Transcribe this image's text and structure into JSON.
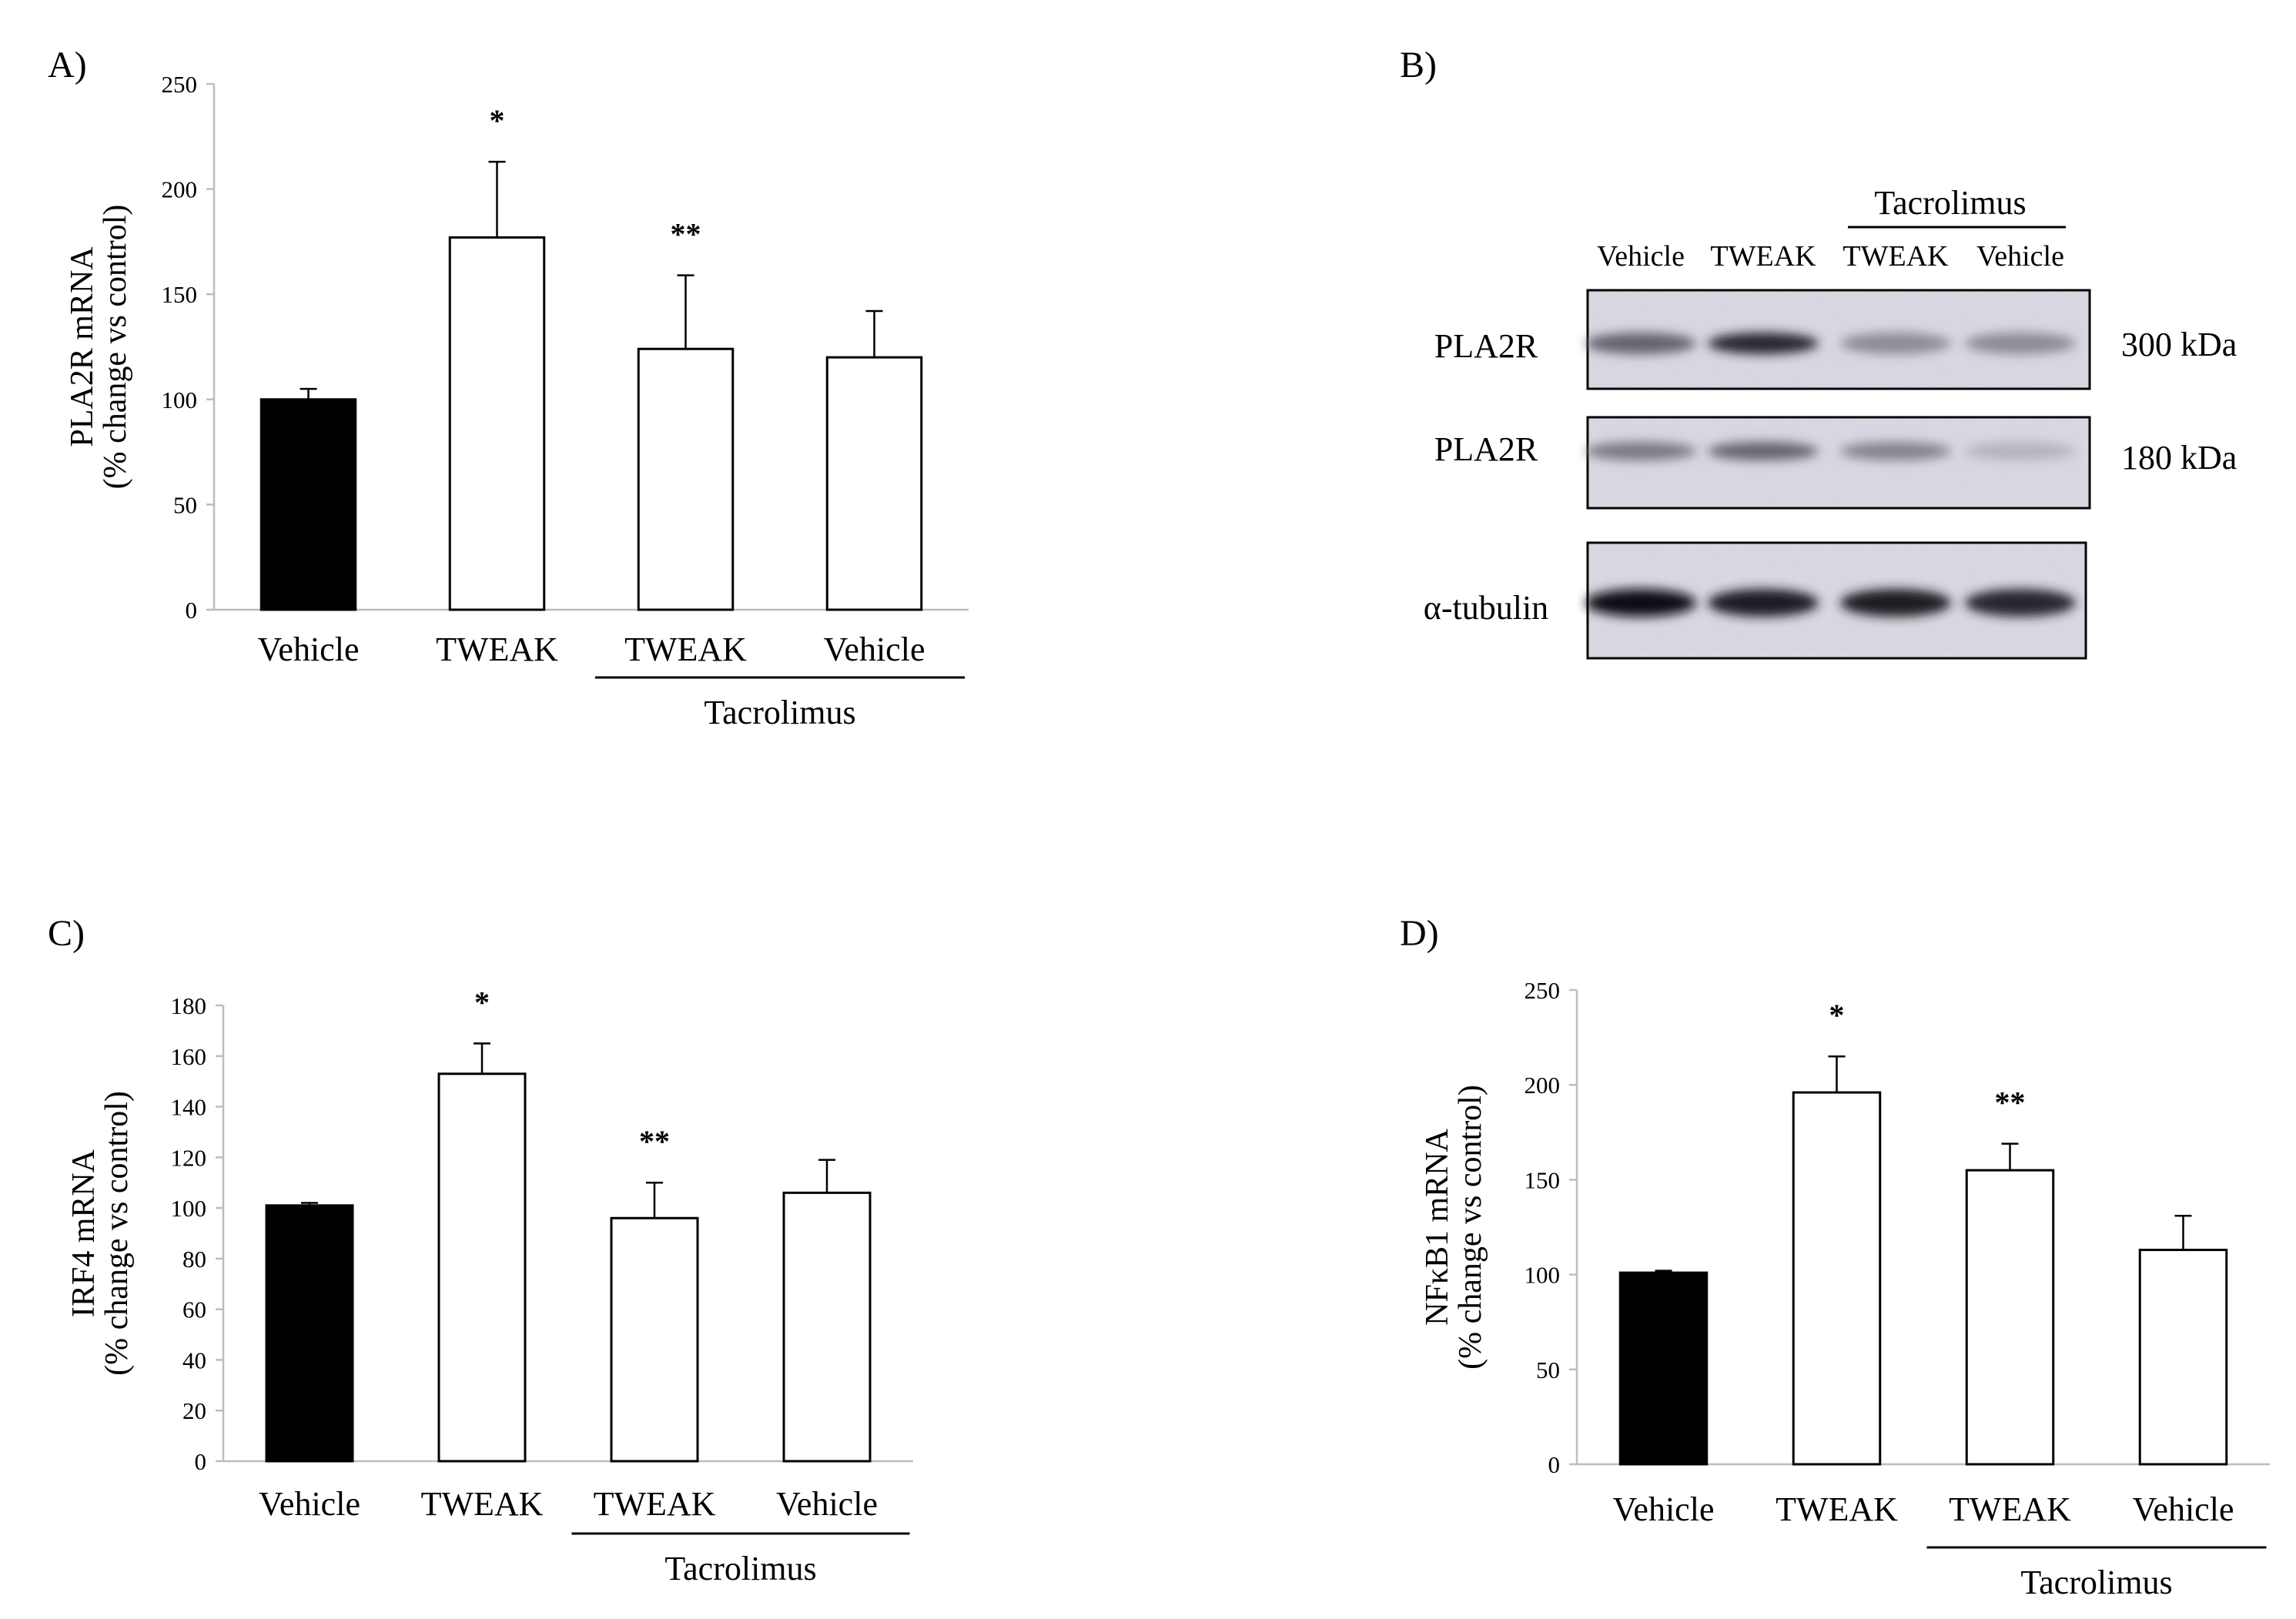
{
  "figure": {
    "panels": [
      {
        "letter": "A)",
        "chart_data": {
          "type": "bar",
          "categories": [
            "Vehicle",
            "TWEAK",
            "TWEAK",
            "Vehicle"
          ],
          "values": [
            100,
            177,
            124,
            120
          ],
          "errors": [
            5,
            36,
            35,
            22
          ],
          "annotations": [
            "",
            "*",
            "**",
            ""
          ],
          "bar_colors": [
            "#000000",
            "#ffffff",
            "#ffffff",
            "#ffffff"
          ],
          "ylabel_lines": [
            "PLA2R mRNA",
            "(% change vs control)"
          ],
          "ylim": [
            0,
            250
          ],
          "yticks": [
            0,
            50,
            100,
            150,
            200,
            250
          ],
          "group_label": "Tacrolimus",
          "group_categories": [
            2,
            3
          ]
        }
      },
      {
        "letter": "C)",
        "chart_data": {
          "type": "bar",
          "categories": [
            "Vehicle",
            "TWEAK",
            "TWEAK",
            "Vehicle"
          ],
          "values": [
            101,
            153,
            96,
            106
          ],
          "errors": [
            1,
            12,
            14,
            13
          ],
          "annotations": [
            "",
            "*",
            "**",
            ""
          ],
          "bar_colors": [
            "#000000",
            "#ffffff",
            "#ffffff",
            "#ffffff"
          ],
          "ylabel_lines": [
            "IRF4 mRNA",
            "(% change vs control)"
          ],
          "ylim": [
            0,
            180
          ],
          "yticks": [
            0,
            20,
            40,
            60,
            80,
            100,
            120,
            140,
            160,
            180
          ],
          "group_label": "Tacrolimus",
          "group_categories": [
            2,
            3
          ]
        }
      },
      {
        "letter": "D)",
        "chart_data": {
          "type": "bar",
          "categories": [
            "Vehicle",
            "TWEAK",
            "TWEAK",
            "Vehicle"
          ],
          "values": [
            101,
            196,
            155,
            113
          ],
          "errors": [
            1,
            19,
            14,
            18
          ],
          "annotations": [
            "",
            "*",
            "**",
            ""
          ],
          "bar_colors": [
            "#000000",
            "#ffffff",
            "#ffffff",
            "#ffffff"
          ],
          "ylabel_lines": [
            "NFκB1 mRNA",
            "(% change vs control)"
          ],
          "ylim": [
            0,
            250
          ],
          "yticks": [
            0,
            50,
            100,
            150,
            200,
            250
          ],
          "group_label": "Tacrolimus",
          "group_categories": [
            2,
            3
          ]
        }
      }
    ],
    "blot": {
      "letter": "B)",
      "group_label": "Tacrolimus",
      "lanes": [
        "Vehicle",
        "TWEAK",
        "TWEAK",
        "Vehicle"
      ],
      "rows": [
        {
          "label": "PLA2R",
          "size": "300 kDa",
          "intensities": [
            0.55,
            0.85,
            0.35,
            0.35
          ]
        },
        {
          "label": "PLA2R",
          "size": "180 kDa",
          "intensities": [
            0.45,
            0.55,
            0.4,
            0.15
          ]
        },
        {
          "label": "α-tubulin",
          "size": "",
          "intensities": [
            1.0,
            0.9,
            0.92,
            0.85
          ]
        }
      ]
    }
  }
}
